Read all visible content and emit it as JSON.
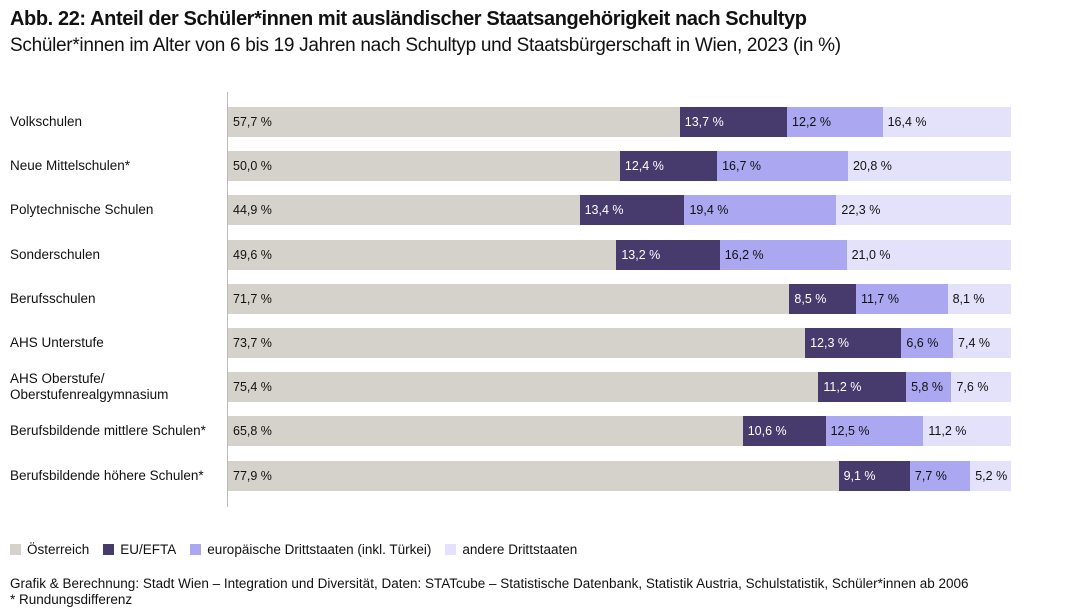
{
  "title": "Abb. 22: Anteil der Schüler*innen mit ausländischer Staatsangehörigkeit nach Schultyp",
  "subtitle": "Schüler*innen im Alter von 6 bis 19 Jahren nach Schultyp und Staatsbürgerschaft in Wien, 2023 (in %)",
  "chart_data": {
    "type": "bar",
    "orientation": "horizontal",
    "stacked": true,
    "xlim": [
      0,
      100
    ],
    "grid": false,
    "legend_position": "bottom-left",
    "categories": [
      "Volkschulen",
      "Neue Mittelschulen*",
      "Polytechnische Schulen",
      "Sonderschulen",
      "Berufsschulen",
      "AHS Unterstufe",
      "AHS Oberstufe/\nOberstufenrealgymnasium",
      "Berufsbildende mittlere Schulen*",
      "Berufsbildende höhere Schulen*"
    ],
    "series": [
      {
        "name": "Österreich",
        "color": "#d5d1cb",
        "text_color": "#111111",
        "values": [
          57.7,
          50.0,
          44.9,
          49.6,
          71.7,
          73.7,
          75.4,
          65.8,
          77.9
        ],
        "labels": [
          "57,7 %",
          "50,0 %",
          "44,9 %",
          "49,6 %",
          "71,7 %",
          "73,7 %",
          "75,4 %",
          "65,8 %",
          "77,9  %"
        ]
      },
      {
        "name": "EU/EFTA",
        "color": "#463b6c",
        "text_color": "#ffffff",
        "values": [
          13.7,
          12.4,
          13.4,
          13.2,
          8.5,
          12.3,
          11.2,
          10.6,
          9.1
        ],
        "labels": [
          "13,7 %",
          "12,4 %",
          "13,4 %",
          "13,2 %",
          "8,5 %",
          "12,3 %",
          "11,2 %",
          "10,6 %",
          "9,1  %"
        ]
      },
      {
        "name": "europäische Drittstaaten (inkl. Türkei)",
        "color": "#aba7f1",
        "text_color": "#111111",
        "values": [
          12.2,
          16.7,
          19.4,
          16.2,
          11.7,
          6.6,
          5.8,
          12.5,
          7.7
        ],
        "labels": [
          "12,2 %",
          "16,7 %",
          "19,4 %",
          "16,2 %",
          "11,7 %",
          "6,6 %",
          "5,8 %",
          "12,5 %",
          "7,7 %"
        ]
      },
      {
        "name": "andere Drittstaaten",
        "color": "#e4e2fa",
        "text_color": "#111111",
        "values": [
          16.4,
          20.8,
          22.3,
          21.0,
          8.1,
          7.4,
          7.6,
          11.2,
          5.2
        ],
        "labels": [
          "16,4 %",
          "20,8 %",
          "22,3 %",
          "21,0 %",
          "8,1 %",
          "7,4 %",
          "7,6 %",
          "11,2 %",
          "5,2 %"
        ]
      }
    ]
  },
  "source": "Grafik & Berechnung: Stadt Wien – Integration und Diversität, Daten: STATcube – Statistische Datenbank, Statistik Austria, Schulstatistik, Schüler*innen ab 2006",
  "footnote": "* Rundungsdifferenz"
}
